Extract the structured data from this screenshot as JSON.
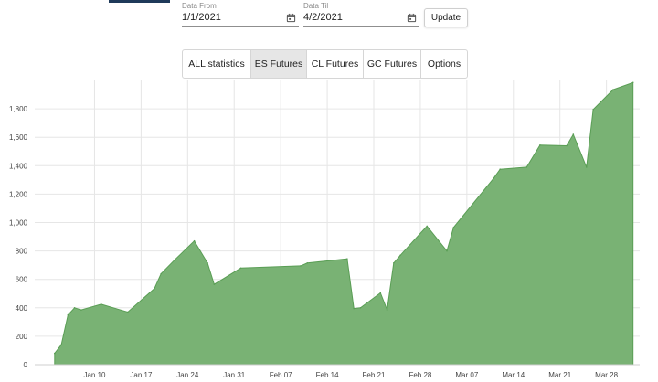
{
  "header": {
    "date_from": {
      "label": "Data From",
      "value": "1/1/2021",
      "icon": "calendar-icon"
    },
    "date_till": {
      "label": "Data Til",
      "value": "4/2/2021",
      "icon": "calendar-icon"
    },
    "update_label": "Update"
  },
  "tabs": [
    {
      "label": "ALL statistics",
      "active": false
    },
    {
      "label": "ES Futures",
      "active": true
    },
    {
      "label": "CL Futures",
      "active": false
    },
    {
      "label": "GC Futures",
      "active": false
    },
    {
      "label": "Options",
      "active": false
    }
  ],
  "colors": {
    "area_fill": "#79b274",
    "area_stroke": "#5a9e55",
    "grid": "#e6e6e6",
    "top_accent": "#1f3a5a"
  },
  "chart_data": {
    "type": "area",
    "xlabel": "",
    "ylabel": "",
    "xlim": [
      "2021-01-01",
      "2021-04-02"
    ],
    "ylim": [
      0,
      2000
    ],
    "y_ticks": [
      0,
      200,
      400,
      600,
      800,
      "1,000",
      "1,200",
      "1,400",
      "1,600",
      "1,800"
    ],
    "x_ticks": [
      {
        "date": "2021-01-10",
        "label": "Jan 10"
      },
      {
        "date": "2021-01-17",
        "label": "Jan 17"
      },
      {
        "date": "2021-01-24",
        "label": "Jan 24"
      },
      {
        "date": "2021-01-31",
        "label": "Jan 31"
      },
      {
        "date": "2021-02-07",
        "label": "Feb 07"
      },
      {
        "date": "2021-02-14",
        "label": "Feb 14"
      },
      {
        "date": "2021-02-21",
        "label": "Feb 21"
      },
      {
        "date": "2021-02-28",
        "label": "Feb 28"
      },
      {
        "date": "2021-03-07",
        "label": "Mar 07"
      },
      {
        "date": "2021-03-14",
        "label": "Mar 14"
      },
      {
        "date": "2021-03-21",
        "label": "Mar 21"
      },
      {
        "date": "2021-03-28",
        "label": "Mar 28"
      }
    ],
    "grid": true,
    "legend": "none",
    "series": [
      {
        "points": [
          {
            "x": "2021-01-04",
            "y": 80
          },
          {
            "x": "2021-01-05",
            "y": 140
          },
          {
            "x": "2021-01-06",
            "y": 350
          },
          {
            "x": "2021-01-07",
            "y": 400
          },
          {
            "x": "2021-01-08",
            "y": 385
          },
          {
            "x": "2021-01-11",
            "y": 425
          },
          {
            "x": "2021-01-15",
            "y": 370
          },
          {
            "x": "2021-01-19",
            "y": 535
          },
          {
            "x": "2021-01-20",
            "y": 640
          },
          {
            "x": "2021-01-22",
            "y": 735
          },
          {
            "x": "2021-01-25",
            "y": 870
          },
          {
            "x": "2021-01-27",
            "y": 715
          },
          {
            "x": "2021-01-28",
            "y": 565
          },
          {
            "x": "2021-02-01",
            "y": 680
          },
          {
            "x": "2021-02-10",
            "y": 695
          },
          {
            "x": "2021-02-11",
            "y": 715
          },
          {
            "x": "2021-02-17",
            "y": 745
          },
          {
            "x": "2021-02-18",
            "y": 395
          },
          {
            "x": "2021-02-19",
            "y": 400
          },
          {
            "x": "2021-02-22",
            "y": 505
          },
          {
            "x": "2021-02-23",
            "y": 385
          },
          {
            "x": "2021-02-24",
            "y": 715
          },
          {
            "x": "2021-02-25",
            "y": 770
          },
          {
            "x": "2021-03-01",
            "y": 975
          },
          {
            "x": "2021-03-04",
            "y": 800
          },
          {
            "x": "2021-03-05",
            "y": 965
          },
          {
            "x": "2021-03-11",
            "y": 1310
          },
          {
            "x": "2021-03-12",
            "y": 1375
          },
          {
            "x": "2021-03-16",
            "y": 1390
          },
          {
            "x": "2021-03-18",
            "y": 1545
          },
          {
            "x": "2021-03-22",
            "y": 1540
          },
          {
            "x": "2021-03-23",
            "y": 1620
          },
          {
            "x": "2021-03-25",
            "y": 1390
          },
          {
            "x": "2021-03-26",
            "y": 1795
          },
          {
            "x": "2021-03-29",
            "y": 1935
          },
          {
            "x": "2021-04-01",
            "y": 1985
          }
        ]
      }
    ]
  }
}
